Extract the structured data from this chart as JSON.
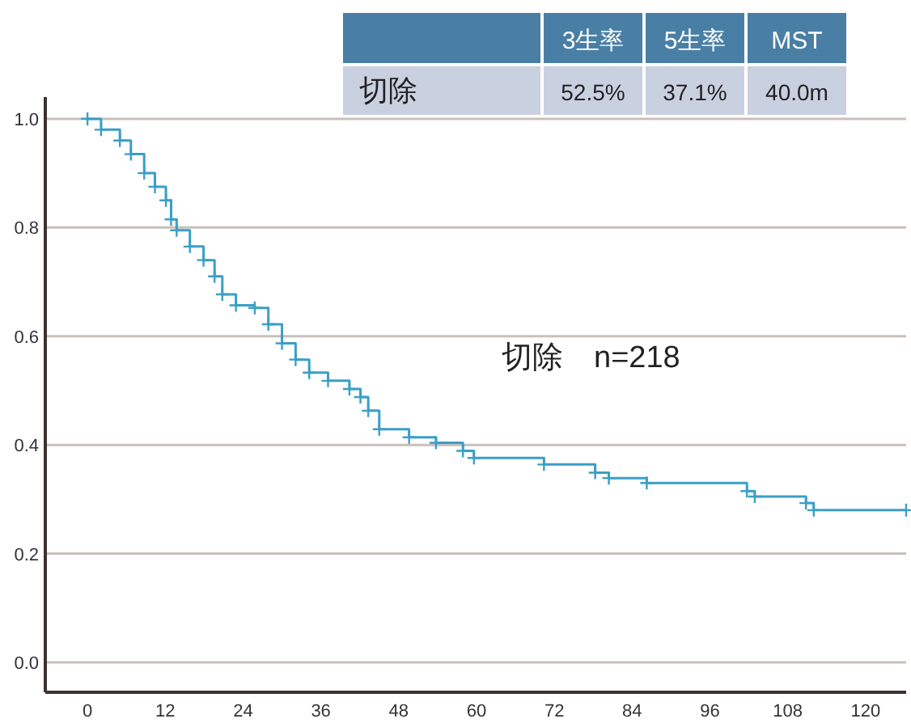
{
  "chart_data": {
    "type": "step",
    "series": [
      {
        "color": "#3a9fc6",
        "x": [
          0,
          2.1,
          5,
          6.7,
          8.75,
          10.4,
          12.1,
          12.9,
          13.75,
          15.8,
          17.9,
          19.6,
          20.8,
          22.9,
          25.8,
          27.9,
          30,
          32.1,
          34.2,
          37.1,
          40.4,
          42.1,
          43.3,
          45,
          49.6,
          53.75,
          57.9,
          59.6,
          70.4,
          78.3,
          80.4,
          86.25,
          101.7,
          102.9,
          110.8,
          112,
          126.25
        ],
        "values": [
          1.0,
          0.98,
          0.96,
          0.935,
          0.9,
          0.875,
          0.85,
          0.815,
          0.795,
          0.765,
          0.74,
          0.71,
          0.677,
          0.657,
          0.652,
          0.622,
          0.587,
          0.557,
          0.533,
          0.518,
          0.503,
          0.488,
          0.463,
          0.429,
          0.414,
          0.404,
          0.389,
          0.376,
          0.364,
          0.349,
          0.339,
          0.33,
          0.315,
          0.305,
          0.293,
          0.28,
          0.28
        ]
      }
    ],
    "xlim": [
      -6.5,
      126.25
    ],
    "ylim": [
      -0.055,
      1.04
    ],
    "xticks": [
      0,
      12,
      24,
      36,
      48,
      60,
      72,
      84,
      96,
      108,
      120
    ],
    "yticks": [
      {
        "value": 0,
        "label": "0.0"
      },
      {
        "value": 0.2,
        "label": "0.2"
      },
      {
        "value": 0.4,
        "label": "0.4"
      },
      {
        "value": 0.6,
        "label": "0.6"
      },
      {
        "value": 0.8,
        "label": "0.8"
      },
      {
        "value": 1.0,
        "label": "1.0"
      }
    ],
    "grid": "y",
    "marker": "cross",
    "line_style": "solid",
    "annotations": [
      "3生率",
      "5生率",
      "MST",
      "切除",
      "52.5%",
      "37.1%",
      "40.0m",
      "切除　n=218"
    ]
  }
}
